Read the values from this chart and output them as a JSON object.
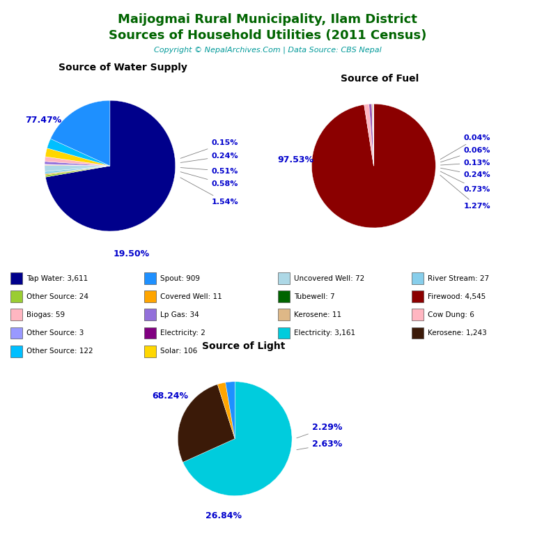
{
  "title_line1": "Maijogmai Rural Municipality, Ilam District",
  "title_line2": "Sources of Household Utilities (2011 Census)",
  "copyright": "Copyright © NepalArchives.Com | Data Source: CBS Nepal",
  "title_color": "#006400",
  "copyright_color": "#009999",
  "water_title": "Source of Water Supply",
  "water_vals": [
    3611,
    909,
    72,
    11,
    24,
    27,
    59,
    34,
    3,
    2,
    122,
    106,
    7,
    11,
    27
  ],
  "water_colors": [
    "#00008B",
    "#1E90FF",
    "#ADD8E6",
    "#FFA500",
    "#9ACD32",
    "#87CEEB",
    "#FFB6C1",
    "#9370DB",
    "#9999FF",
    "#800080",
    "#00BFFF",
    "#FFD700",
    "#006400",
    "#DEB887",
    "#87CEEB"
  ],
  "fuel_vals": [
    4545,
    59,
    6,
    11,
    34,
    2,
    27,
    3,
    1243
  ],
  "fuel_colors": [
    "#8B0000",
    "#FFB6C1",
    "#FFB6C1",
    "#DEB887",
    "#9B59B6",
    "#800080",
    "#87CEEB",
    "#9999FF",
    "#3B1A08"
  ],
  "fuel_title": "Source of Fuel",
  "light_vals": [
    3161,
    1243,
    106,
    122
  ],
  "light_colors": [
    "#00CCDD",
    "#3B1A08",
    "#FFA500",
    "#1E90FF"
  ],
  "light_title": "Source of Light",
  "water_right_labels": [
    "0.15%",
    "0.24%",
    "0.51%",
    "0.58%",
    "1.54%"
  ],
  "fuel_right_labels": [
    "0.04%",
    "0.06%",
    "0.13%",
    "0.24%",
    "0.73%",
    "1.27%"
  ],
  "legend_items": [
    {
      "label": "Tap Water: 3,611",
      "color": "#00008B"
    },
    {
      "label": "Spout: 909",
      "color": "#1E90FF"
    },
    {
      "label": "Uncovered Well: 72",
      "color": "#ADD8E6"
    },
    {
      "label": "River Stream: 27",
      "color": "#87CEEB"
    },
    {
      "label": "Other Source: 24",
      "color": "#9ACD32"
    },
    {
      "label": "Covered Well: 11",
      "color": "#FFA500"
    },
    {
      "label": "Tubewell: 7",
      "color": "#006400"
    },
    {
      "label": "Firewood: 4,545",
      "color": "#8B0000"
    },
    {
      "label": "Biogas: 59",
      "color": "#FFB6C1"
    },
    {
      "label": "Lp Gas: 34",
      "color": "#9370DB"
    },
    {
      "label": "Kerosene: 11",
      "color": "#DEB887"
    },
    {
      "label": "Cow Dung: 6",
      "color": "#FFB6C1"
    },
    {
      "label": "Other Source: 3",
      "color": "#9999FF"
    },
    {
      "label": "Electricity: 2",
      "color": "#800080"
    },
    {
      "label": "Electricity: 3,161",
      "color": "#00CCDD"
    },
    {
      "label": "Kerosene: 1,243",
      "color": "#3B1A08"
    },
    {
      "label": "Other Source: 122",
      "color": "#00BFFF"
    },
    {
      "label": "Solar: 106",
      "color": "#FFD700"
    }
  ]
}
